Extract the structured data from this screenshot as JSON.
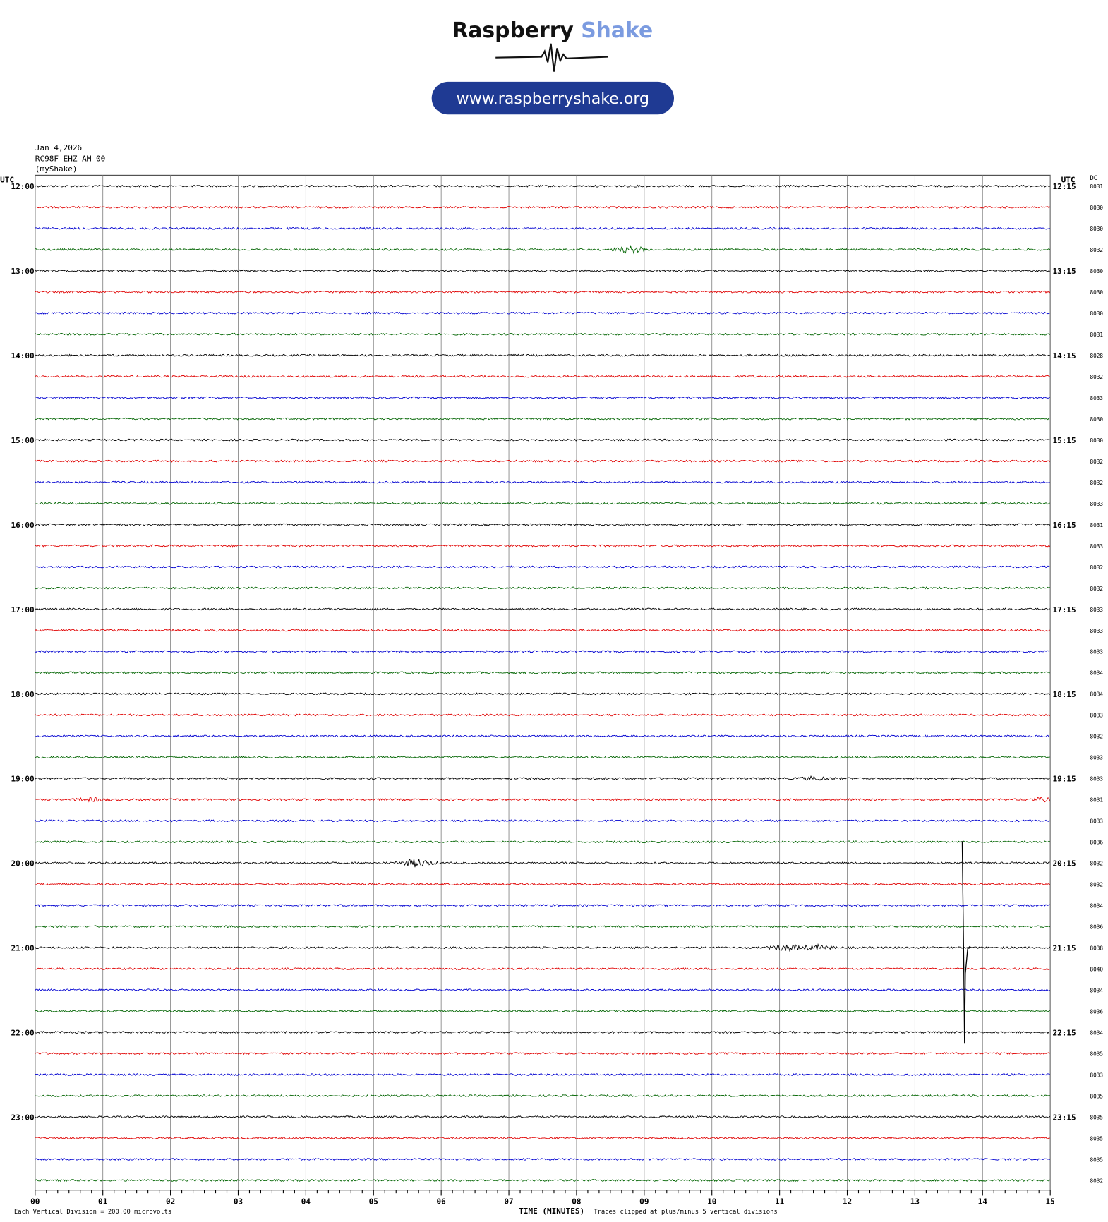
{
  "header": {
    "brand_main": "Raspberry",
    "brand_accent": "Shake",
    "url": "www.raspberryshake.org"
  },
  "info": {
    "date": "Jan 4,2026",
    "station": "RC98F EHZ AM 00",
    "owner": "(myShake)"
  },
  "axis": {
    "left_unit": "UTC",
    "right_unit": "UTC",
    "dc_label": "DC",
    "left_labels": [
      "12:00",
      "13:00",
      "14:00",
      "15:00",
      "16:00",
      "17:00",
      "18:00",
      "19:00",
      "20:00",
      "21:00",
      "22:00",
      "23:00"
    ],
    "right_labels": [
      "12:15",
      "13:15",
      "14:15",
      "15:15",
      "16:15",
      "17:15",
      "18:15",
      "19:15",
      "20:15",
      "21:15",
      "22:15",
      "23:15"
    ],
    "dc_values": [
      8031,
      8030,
      8030,
      8032,
      8030,
      8030,
      8030,
      8031,
      8028,
      8032,
      8033,
      8030,
      8030,
      8032,
      8032,
      8033,
      8031,
      8033,
      8032,
      8032,
      8033,
      8033,
      8033,
      8034,
      8034,
      8033,
      8032,
      8033,
      8033,
      8031,
      8033,
      8036,
      8032,
      8032,
      8034,
      8036,
      8038,
      8040,
      8034,
      8036,
      8034,
      8035,
      8033,
      8035,
      8035,
      8035,
      8035,
      8032
    ],
    "x_labels": [
      "00",
      "01",
      "02",
      "03",
      "04",
      "05",
      "06",
      "07",
      "08",
      "09",
      "10",
      "11",
      "12",
      "13",
      "14",
      "15"
    ],
    "x_title": "TIME (MINUTES)"
  },
  "footer": {
    "scale_note": "Each Vertical Division =  200.00 microvolts",
    "clip_note": "Traces clipped at plus/minus 5 vertical divisions"
  }
}
